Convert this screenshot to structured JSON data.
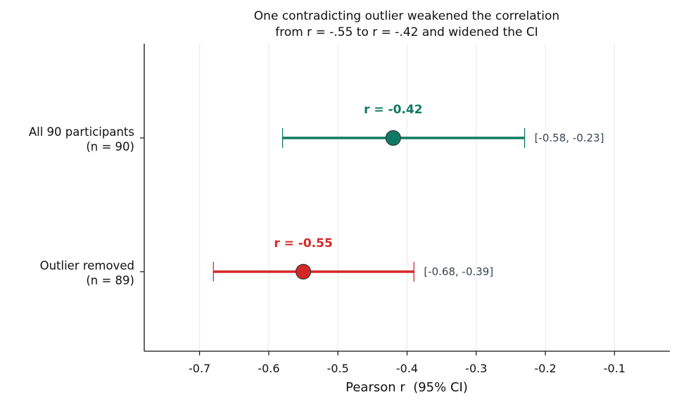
{
  "chart_data": {
    "type": "forest",
    "title_lines": [
      "One contradicting outlier weakened the correlation",
      "from r = -.55 to r = -.42 and widened the CI"
    ],
    "xlabel": "Pearson r  (95% CI)",
    "xlim": [
      -0.78,
      -0.02
    ],
    "xticks": [
      -0.7,
      -0.6,
      -0.5,
      -0.4,
      -0.3,
      -0.2,
      -0.1
    ],
    "xtick_labels": [
      "-0.7",
      "-0.6",
      "-0.5",
      "-0.4",
      "-0.3",
      "-0.2",
      "-0.1"
    ],
    "grid": "vertical",
    "rows": [
      {
        "label_lines": [
          "All 90 participants",
          "(n = 90)"
        ],
        "r": -0.42,
        "ci_low": -0.58,
        "ci_high": -0.23,
        "r_label": "r = -0.42",
        "ci_label": "[-0.58, -0.23]",
        "color": "#0f7a62"
      },
      {
        "label_lines": [
          "Outlier removed",
          "(n = 89)"
        ],
        "r": -0.55,
        "ci_low": -0.68,
        "ci_high": -0.39,
        "r_label": "r = -0.55",
        "ci_label": "[-0.68, -0.39]",
        "color": "#d62728"
      }
    ]
  }
}
